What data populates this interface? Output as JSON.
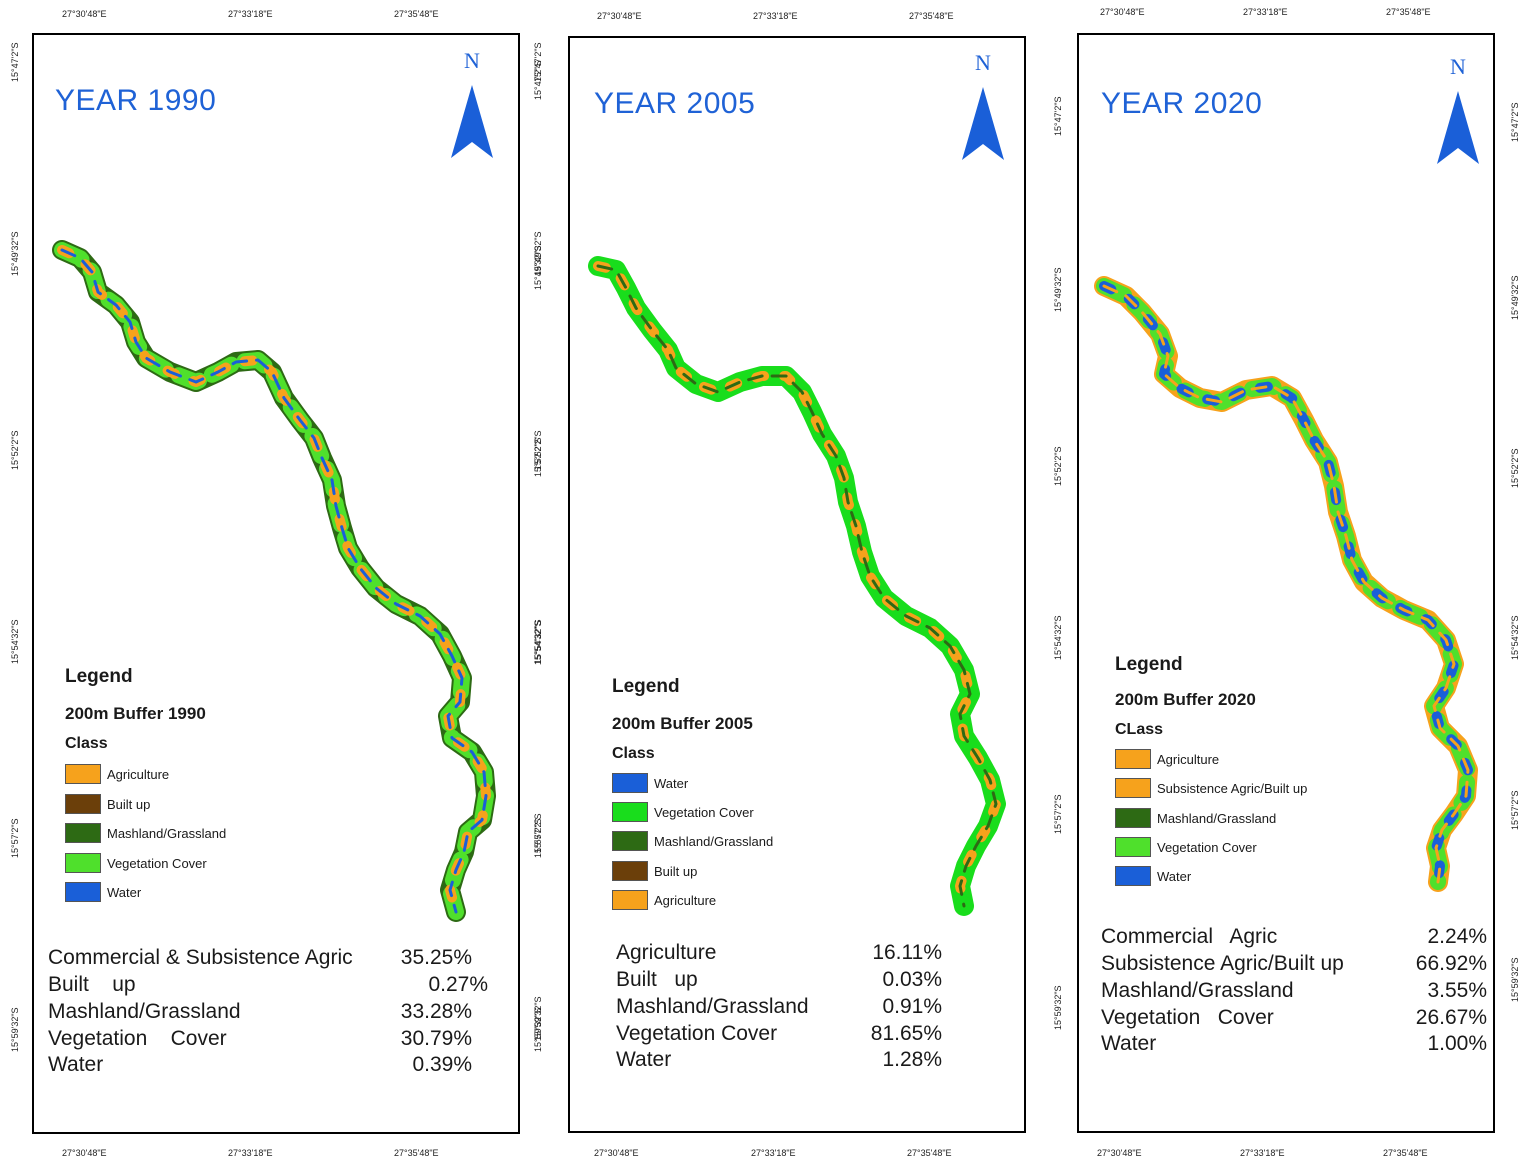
{
  "panels": [
    {
      "year_label": "YEAR 1990",
      "north_label": "N",
      "x_ticks": [
        "27°30'48\"E",
        "27°33'18\"E",
        "27°35'48\"E"
      ],
      "y_ticks_left": [
        "15°47'2\"S",
        "15°49'32\"S",
        "15°52'2\"S",
        "15°54'32\"S",
        "15°57'2\"S",
        "15°59'32\"S"
      ],
      "y_ticks_right": [
        "15°47'2\"S",
        "15°49'32\"S",
        "15°52'2\"S",
        "15°54'32\"S",
        "15°57'2\"S",
        "15°59'32\"S"
      ],
      "legend_title": "Legend",
      "legend_subtitle": "200m Buffer 1990",
      "legend_class_label": "Class",
      "legend_items": [
        {
          "label": "Agriculture",
          "color": "#f6a21c"
        },
        {
          "label": "Built up",
          "color": "#6b3f0a"
        },
        {
          "label": "Mashland/Grassland",
          "color": "#2d6a14"
        },
        {
          "label": "Vegetation Cover",
          "color": "#4fe02c"
        },
        {
          "label": "Water",
          "color": "#1a5fd8"
        }
      ],
      "stats": [
        {
          "name": "Commercial & Subsistence Agric",
          "value": "35.25%"
        },
        {
          "name": "Built    up",
          "value": "0.27%"
        },
        {
          "name": "Mashland/Grassland",
          "value": "33.28%"
        },
        {
          "name": "Vegetation    Cover",
          "value": "30.79%"
        },
        {
          "name": "Water",
          "value": "0.39%"
        }
      ],
      "river_colors": {
        "base": "#2d6a14",
        "accent1": "#4fe02c",
        "accent2": "#f6a21c",
        "accent3": "#1a5fd8"
      }
    },
    {
      "year_label": "YEAR 2005",
      "north_label": "N",
      "x_ticks": [
        "27°30'48\"E",
        "27°33'18\"E",
        "27°35'48\"E"
      ],
      "y_ticks_left": [
        "15°47'2\"S",
        "15°49'32\"S",
        "15°52'2\"S",
        "15°54'32\"S",
        "15°57'2\"S",
        "15°59'32\"S"
      ],
      "y_ticks_right": [
        "15°47'2\"S",
        "15°49'32\"S",
        "15°52'2\"S",
        "15°54'32\"S",
        "15°57'2\"S",
        "15°59'32\"S"
      ],
      "legend_title": "Legend",
      "legend_subtitle": "200m Buffer 2005",
      "legend_class_label": "Class",
      "legend_items": [
        {
          "label": "Water",
          "color": "#1a5fd8"
        },
        {
          "label": "Vegetation Cover",
          "color": "#19dd1c"
        },
        {
          "label": "Mashland/Grassland",
          "color": "#2d6a14"
        },
        {
          "label": "Built up",
          "color": "#6b3f0a"
        },
        {
          "label": "Agriculture",
          "color": "#f6a21c"
        }
      ],
      "stats": [
        {
          "name": "Agriculture",
          "value": "16.11%"
        },
        {
          "name": "Built   up",
          "value": "0.03%"
        },
        {
          "name": "Mashland/Grassland",
          "value": "0.91%"
        },
        {
          "name": "Vegetation Cover",
          "value": "81.65%"
        },
        {
          "name": "Water",
          "value": "1.28%"
        }
      ],
      "river_colors": {
        "base": "#19dd1c",
        "accent1": "#19dd1c",
        "accent2": "#f6a21c",
        "accent3": "#2d6a14"
      }
    },
    {
      "year_label": "YEAR 2020",
      "north_label": "N",
      "x_ticks": [
        "27°30'48\"E",
        "27°33'18\"E",
        "27°35'48\"E"
      ],
      "y_ticks_left": [
        "15°47'2\"S",
        "15°49'32\"S",
        "15°52'2\"S",
        "15°54'32\"S",
        "15°57'2\"S",
        "15°59'32\"S"
      ],
      "y_ticks_right": [
        "15°47'2\"S",
        "15°49'32\"S",
        "15°52'2\"S",
        "15°54'32\"S",
        "15°57'2\"S",
        "15°59'32\"S"
      ],
      "legend_title": "Legend",
      "legend_subtitle": "200m Buffer 2020",
      "legend_class_label": "CLass",
      "legend_items": [
        {
          "label": "Agriculture",
          "color": "#f6a21c"
        },
        {
          "label": "Subsistence Agric/Built up",
          "color": "#f6a21c"
        },
        {
          "label": "Mashland/Grassland",
          "color": "#2d6a14"
        },
        {
          "label": "Vegetation Cover",
          "color": "#4fe02c"
        },
        {
          "label": "Water",
          "color": "#1a5fd8"
        }
      ],
      "stats": [
        {
          "name": "Commercial   Agric",
          "value": "2.24%"
        },
        {
          "name": "Subsistence Agric/Built up",
          "value": "66.92%"
        },
        {
          "name": "Mashland/Grassland",
          "value": "3.55%"
        },
        {
          "name": "Vegetation   Cover",
          "value": "26.67%"
        },
        {
          "name": "Water",
          "value": "1.00%"
        }
      ],
      "river_colors": {
        "base": "#f6a21c",
        "accent1": "#4fe02c",
        "accent2": "#1a5fd8",
        "accent3": "#f6a21c"
      }
    }
  ]
}
